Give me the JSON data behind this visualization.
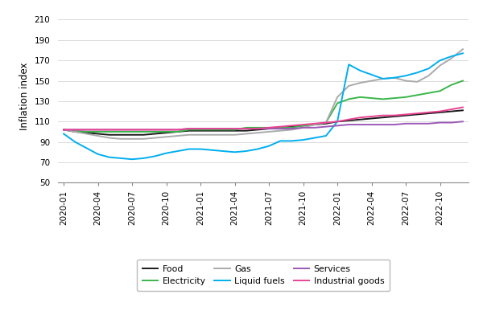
{
  "title": "",
  "ylabel": "Inflation index",
  "ylim": [
    50,
    220
  ],
  "yticks": [
    50,
    70,
    90,
    110,
    130,
    150,
    170,
    190,
    210
  ],
  "background_color": "#ffffff",
  "series": {
    "Food": {
      "color": "#1a1a1a",
      "linewidth": 1.4,
      "data": [
        102,
        100,
        99,
        98,
        97,
        97,
        97,
        97,
        98,
        99,
        100,
        101,
        101,
        101,
        101,
        101,
        101,
        102,
        103,
        104,
        105,
        106,
        107,
        108,
        110,
        111,
        112,
        113,
        114,
        115,
        116,
        117,
        118,
        119,
        120,
        121
      ]
    },
    "Electricity": {
      "color": "#3ab54a",
      "linewidth": 1.4,
      "data": [
        102,
        101,
        100,
        100,
        100,
        100,
        100,
        100,
        100,
        100,
        100,
        102,
        102,
        102,
        102,
        102,
        104,
        104,
        104,
        104,
        104,
        106,
        107,
        109,
        128,
        132,
        134,
        133,
        132,
        133,
        134,
        136,
        138,
        140,
        146,
        150
      ]
    },
    "Gas": {
      "color": "#aaaaaa",
      "linewidth": 1.4,
      "data": [
        102,
        100,
        98,
        96,
        94,
        93,
        93,
        93,
        94,
        95,
        96,
        97,
        97,
        97,
        97,
        97,
        98,
        99,
        100,
        101,
        102,
        104,
        107,
        109,
        134,
        145,
        148,
        150,
        152,
        153,
        150,
        149,
        155,
        165,
        172,
        181
      ]
    },
    "Liquid fuels": {
      "color": "#00aeef",
      "linewidth": 1.4,
      "data": [
        98,
        90,
        84,
        78,
        75,
        74,
        73,
        74,
        76,
        79,
        81,
        83,
        83,
        82,
        81,
        80,
        81,
        83,
        86,
        91,
        91,
        92,
        94,
        96,
        110,
        166,
        160,
        156,
        152,
        153,
        155,
        158,
        162,
        170,
        174,
        177
      ]
    },
    "Services": {
      "color": "#9b59b6",
      "linewidth": 1.4,
      "data": [
        102,
        102,
        102,
        102,
        102,
        102,
        102,
        102,
        102,
        102,
        102,
        103,
        103,
        103,
        103,
        103,
        103,
        103,
        103,
        103,
        103,
        104,
        104,
        105,
        106,
        107,
        107,
        107,
        107,
        107,
        108,
        108,
        108,
        109,
        109,
        110
      ]
    },
    "Industrial goods": {
      "color": "#e84393",
      "linewidth": 1.4,
      "data": [
        102,
        102,
        102,
        102,
        102,
        102,
        102,
        102,
        102,
        102,
        102,
        103,
        103,
        103,
        103,
        103,
        103,
        103,
        104,
        105,
        106,
        107,
        108,
        109,
        110,
        112,
        114,
        115,
        116,
        116,
        117,
        118,
        119,
        120,
        122,
        124
      ]
    }
  },
  "x_labels": [
    "2020-01",
    "2020-04",
    "2020-07",
    "2020-10",
    "2021-01",
    "2021-04",
    "2021-07",
    "2021-10",
    "2022-01",
    "2022-04",
    "2022-07",
    "2022-10"
  ],
  "x_tick_positions": [
    0,
    3,
    6,
    9,
    12,
    15,
    18,
    21,
    24,
    27,
    30,
    33
  ],
  "legend_order": [
    "Food",
    "Electricity",
    "Gas",
    "Liquid fuels",
    "Services",
    "Industrial goods"
  ]
}
